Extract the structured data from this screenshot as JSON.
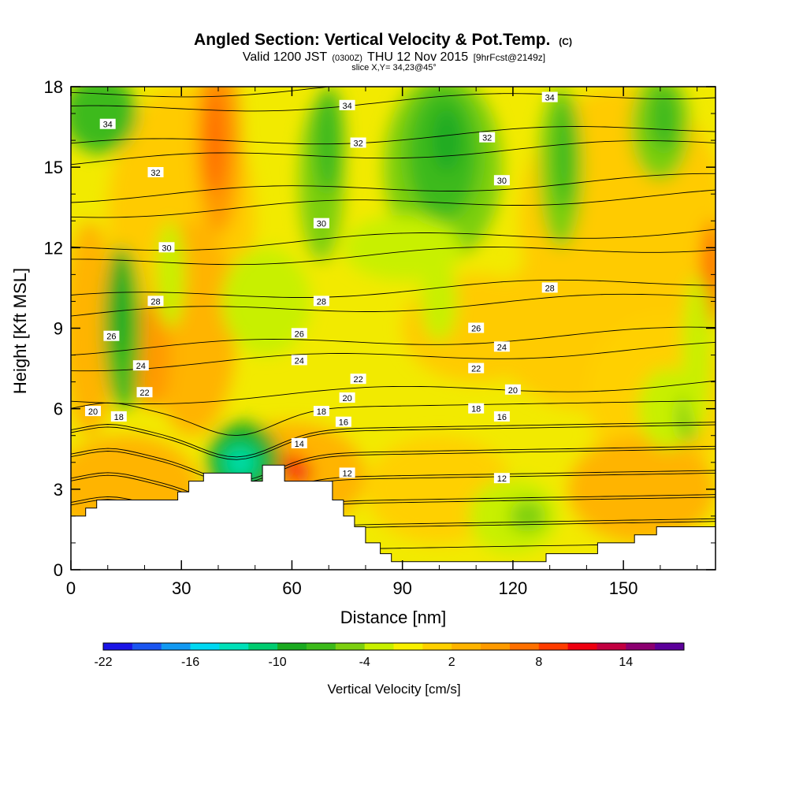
{
  "chart_data": {
    "type": "heatmap",
    "title": "Angled Section: Vertical Velocity & Pot.Temp.",
    "title_unit": "(C)",
    "subtitle_parts": [
      "Valid 1200 JST",
      "(0300Z)",
      "THU 12 Nov 2015",
      "[9hrFcst@2149z]"
    ],
    "slice_label": "slice X,Y= 34,23@45°",
    "xlabel": "Distance [nm]",
    "ylabel": "Height [Kft MSL]",
    "xlim": [
      0,
      175
    ],
    "ylim": [
      0,
      18
    ],
    "x_ticks": [
      0,
      30,
      60,
      90,
      120,
      150
    ],
    "y_ticks": [
      0,
      3,
      6,
      9,
      12,
      15,
      18
    ],
    "colorbar": {
      "label": "Vertical Velocity [cm/s]",
      "tick_labels": [
        "-22",
        "-16",
        "-10",
        "-4",
        "2",
        "8",
        "14"
      ],
      "colors": [
        "#1a14e6",
        "#1a55f0",
        "#1299f2",
        "#00d8f2",
        "#00e0b8",
        "#00cc70",
        "#1aaa20",
        "#3cba1a",
        "#7ccf10",
        "#c8f000",
        "#f8f000",
        "#ffd000",
        "#ffb400",
        "#ff9a00",
        "#ff7000",
        "#ff3c00",
        "#ee0010",
        "#c20040",
        "#8c0070",
        "#5c009a"
      ]
    },
    "terrain_kft": [
      [
        0,
        2
      ],
      [
        4,
        2
      ],
      [
        4,
        2.3
      ],
      [
        7,
        2.3
      ],
      [
        7,
        2.6
      ],
      [
        10,
        2.6
      ],
      [
        10,
        2.6
      ],
      [
        29,
        2.6
      ],
      [
        29,
        2.9
      ],
      [
        32,
        2.9
      ],
      [
        32,
        3.3
      ],
      [
        36,
        3.3
      ],
      [
        36,
        3.6
      ],
      [
        49,
        3.6
      ],
      [
        49,
        3.3
      ],
      [
        52,
        3.3
      ],
      [
        52,
        3.9
      ],
      [
        58,
        3.9
      ],
      [
        58,
        3.3
      ],
      [
        71,
        3.3
      ],
      [
        71,
        2.6
      ],
      [
        74,
        2.6
      ],
      [
        74,
        2
      ],
      [
        77,
        2
      ],
      [
        77,
        1.6
      ],
      [
        80,
        1.6
      ],
      [
        80,
        1
      ],
      [
        84,
        1
      ],
      [
        84,
        0.6
      ],
      [
        87,
        0.6
      ],
      [
        87,
        0.3
      ],
      [
        129,
        0.3
      ],
      [
        129,
        0.6
      ],
      [
        143,
        0.6
      ],
      [
        143,
        1
      ],
      [
        153,
        1
      ],
      [
        153,
        1.3
      ],
      [
        159,
        1.3
      ],
      [
        159,
        1.6
      ],
      [
        175,
        1.6
      ]
    ],
    "theta_contours": [
      {
        "value": 12,
        "labels": [
          [
            75,
            3.6
          ],
          [
            117,
            3.4
          ]
        ]
      },
      {
        "value": 14,
        "labels": [
          [
            62,
            4.7
          ]
        ]
      },
      {
        "value": 16,
        "labels": [
          [
            74,
            5.5
          ],
          [
            117,
            5.7
          ]
        ]
      },
      {
        "value": 18,
        "labels": [
          [
            13,
            5.7
          ],
          [
            68,
            5.9
          ],
          [
            110,
            6.0
          ]
        ]
      },
      {
        "value": 20,
        "labels": [
          [
            6,
            5.9
          ],
          [
            75,
            6.4
          ],
          [
            120,
            6.7
          ]
        ]
      },
      {
        "value": 22,
        "labels": [
          [
            20,
            6.6
          ],
          [
            78,
            7.1
          ],
          [
            110,
            7.5
          ]
        ]
      },
      {
        "value": 24,
        "labels": [
          [
            19,
            7.6
          ],
          [
            62,
            7.8
          ],
          [
            117,
            8.3
          ]
        ]
      },
      {
        "value": 26,
        "labels": [
          [
            11,
            8.7
          ],
          [
            62,
            8.8
          ],
          [
            110,
            9.0
          ]
        ]
      },
      {
        "value": 28,
        "labels": [
          [
            23,
            10.0
          ],
          [
            68,
            10.0
          ],
          [
            130,
            10.5
          ]
        ]
      },
      {
        "value": 30,
        "labels": [
          [
            26,
            12.0
          ],
          [
            68,
            12.9
          ],
          [
            117,
            14.5
          ]
        ]
      },
      {
        "value": 32,
        "labels": [
          [
            23,
            14.8
          ],
          [
            78,
            15.9
          ],
          [
            113,
            16.1
          ]
        ]
      },
      {
        "value": 34,
        "labels": [
          [
            10,
            16.6
          ],
          [
            75,
            17.3
          ],
          [
            130,
            17.6
          ]
        ]
      }
    ]
  }
}
